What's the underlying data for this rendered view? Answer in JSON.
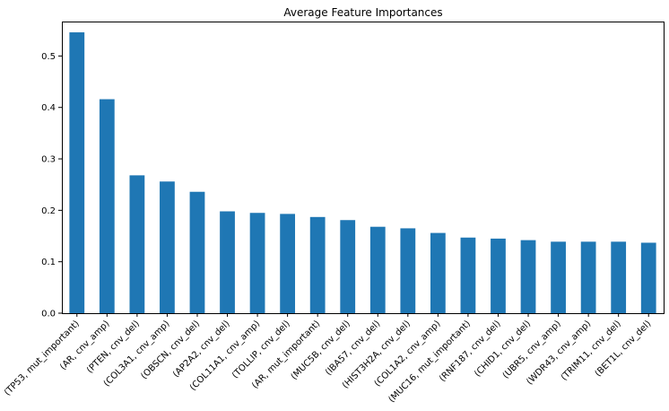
{
  "chart_data": {
    "type": "bar",
    "title": "Average Feature Importances",
    "xlabel": "",
    "ylabel": "",
    "ylim": [
      0,
      0.567
    ],
    "yticks": [
      0.0,
      0.1,
      0.2,
      0.3,
      0.4,
      0.5
    ],
    "ytick_labels": [
      "0.0",
      "0.1",
      "0.2",
      "0.3",
      "0.4",
      "0.5"
    ],
    "bar_color": "#1f77b4",
    "grid": false,
    "categories": [
      "(TP53, mut_important)",
      "(AR, cnv_amp)",
      "(PTEN, cnv_del)",
      "(COL3A1, cnv_amp)",
      "(OBSCN, cnv_del)",
      "(AP2A2, cnv_del)",
      "(COL11A1, cnv_amp)",
      "(TOLLIP, cnv_del)",
      "(AR, mut_important)",
      "(MUC5B, cnv_del)",
      "(IBA57, cnv_del)",
      "(HIST3H2A, cnv_del)",
      "(COL1A2, cnv_amp)",
      "(MUC16, mut_important)",
      "(RNF187, cnv_del)",
      "(CHID1, cnv_del)",
      "(UBR5, cnv_amp)",
      "(WDR43, cnv_amp)",
      "(TRIM11, cnv_del)",
      "(BET1L, cnv_del)"
    ],
    "values": [
      0.546,
      0.416,
      0.268,
      0.256,
      0.236,
      0.198,
      0.195,
      0.193,
      0.187,
      0.181,
      0.168,
      0.165,
      0.156,
      0.147,
      0.145,
      0.142,
      0.139,
      0.139,
      0.139,
      0.137
    ]
  }
}
